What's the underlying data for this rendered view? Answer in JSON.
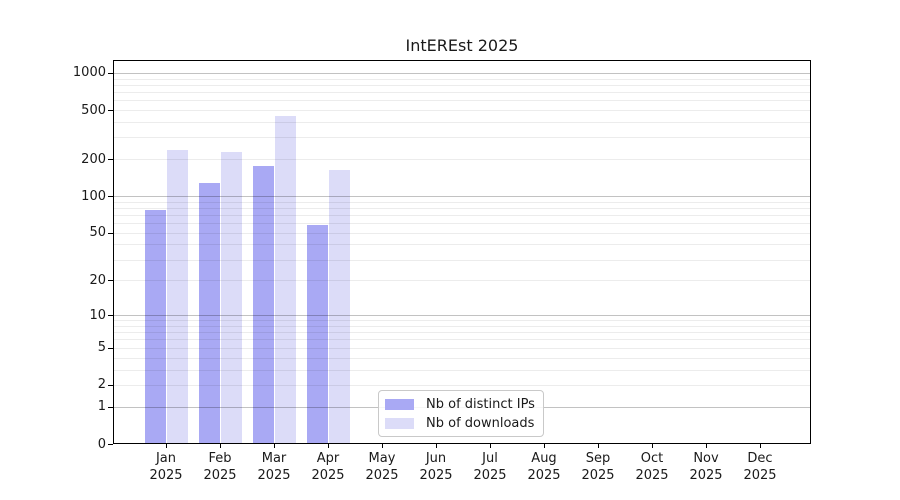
{
  "figure": {
    "background": "#ffffff"
  },
  "chart_data": {
    "type": "bar",
    "title": "IntEREst 2025",
    "year_label": "2025",
    "categories": [
      "Jan",
      "Feb",
      "Mar",
      "Apr",
      "May",
      "Jun",
      "Jul",
      "Aug",
      "Sep",
      "Oct",
      "Nov",
      "Dec"
    ],
    "series": [
      {
        "name": "Nb of distinct IPs",
        "color": "#a9a9f4",
        "values": [
          76,
          127,
          174,
          57,
          0,
          0,
          0,
          0,
          0,
          0,
          0,
          0
        ]
      },
      {
        "name": "Nb of downloads",
        "color": "#dcdcf8",
        "values": [
          236,
          225,
          442,
          161,
          0,
          0,
          0,
          0,
          0,
          0,
          0,
          0
        ]
      }
    ],
    "xlabel": "",
    "ylabel": "",
    "yscale": "log10(value+1)",
    "ylim": [
      0,
      1280
    ],
    "yticks": [
      0,
      1,
      2,
      5,
      10,
      20,
      50,
      100,
      200,
      500,
      1000
    ],
    "major_gridlines": [
      1,
      10,
      100,
      1000
    ],
    "minor_gridlines": [
      2,
      3,
      4,
      5,
      6,
      7,
      8,
      9,
      20,
      30,
      40,
      50,
      60,
      70,
      80,
      90,
      200,
      300,
      400,
      500,
      600,
      700,
      800,
      900
    ],
    "grid": "horizontal",
    "legend_position": "inside-bottom-center"
  },
  "colors": {
    "frame": "#000000",
    "text": "#1a1a1a",
    "major_grid": "rgba(0,0,0,0.24)",
    "minor_grid": "rgba(0,0,0,0.075)"
  }
}
